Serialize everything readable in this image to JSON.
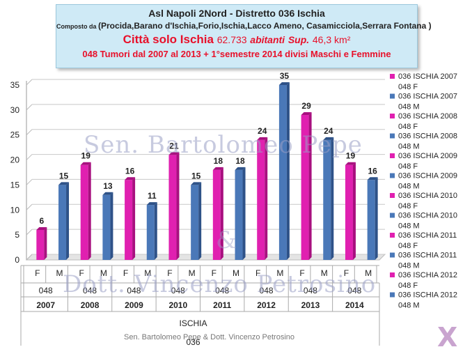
{
  "header": {
    "line1": "Asl Napoli 2Nord - Distretto 036 Ischia",
    "line2_prefix": "Composto da",
    "line2_body": "(Procida,Barano d'Ischia,Forio,Ischia,Lacco Ameno, Casamicciola,Serrara Fontana )",
    "line3_city": "Città solo Ischia",
    "line3_pop": "62.733",
    "line3_abitanti": "abitanti",
    "line3_sup": "Sup.",
    "line3_area": "46,3 km²",
    "line4": "048 Tumori dal 2007 al 2013 + 1°semestre 2014 divisi Maschi e Femmine"
  },
  "watermark": {
    "line1": "Sen. Bartolomeo Pepe",
    "amp": "&",
    "line2": "Dott. Vincenzo Petrosino"
  },
  "credits": "Sen. Bartolomeo Pepe & Dott. Vincenzo Petrosino",
  "logo": "X",
  "chart_data": {
    "type": "bar",
    "ylim": [
      0,
      35
    ],
    "yticks": [
      0,
      5,
      10,
      15,
      20,
      25,
      30,
      35
    ],
    "grid": true,
    "legend_position": "right",
    "colors": {
      "F": "#e020b0",
      "M": "#4a78b8"
    },
    "axis_levels": {
      "tumor_code": "048",
      "place": "ISCHIA",
      "district": "036"
    },
    "categories": [
      {
        "year": "2007",
        "sex": "F"
      },
      {
        "year": "2007",
        "sex": "M"
      },
      {
        "year": "2008",
        "sex": "F"
      },
      {
        "year": "2008",
        "sex": "M"
      },
      {
        "year": "2009",
        "sex": "F"
      },
      {
        "year": "2009",
        "sex": "M"
      },
      {
        "year": "2010",
        "sex": "F"
      },
      {
        "year": "2010",
        "sex": "M"
      },
      {
        "year": "2011",
        "sex": "F"
      },
      {
        "year": "2011",
        "sex": "M"
      },
      {
        "year": "2012",
        "sex": "F"
      },
      {
        "year": "2012",
        "sex": "M"
      },
      {
        "year": "2013",
        "sex": "F"
      },
      {
        "year": "2013",
        "sex": "M"
      },
      {
        "year": "2014",
        "sex": "F"
      },
      {
        "year": "2014",
        "sex": "M"
      }
    ],
    "values": [
      6,
      15,
      19,
      13,
      16,
      11,
      21,
      15,
      18,
      18,
      24,
      35,
      29,
      24,
      19,
      16
    ],
    "legend": [
      {
        "label": "036 ISCHIA 2007 048 F",
        "sex": "F"
      },
      {
        "label": "036 ISCHIA 2007 048 M",
        "sex": "M"
      },
      {
        "label": "036 ISCHIA 2008 048 F",
        "sex": "F"
      },
      {
        "label": "036 ISCHIA 2008 048 M",
        "sex": "M"
      },
      {
        "label": "036 ISCHIA 2009 048 F",
        "sex": "F"
      },
      {
        "label": "036 ISCHIA 2009 048 M",
        "sex": "M"
      },
      {
        "label": "036 ISCHIA 2010 048 F",
        "sex": "F"
      },
      {
        "label": "036 ISCHIA 2010 048 M",
        "sex": "M"
      },
      {
        "label": "036 ISCHIA 2011 048 F",
        "sex": "F"
      },
      {
        "label": "036 ISCHIA 2011 048 M",
        "sex": "M"
      },
      {
        "label": "036 ISCHIA 2012 048 F",
        "sex": "F"
      },
      {
        "label": "036 ISCHIA 2012 048 M",
        "sex": "M"
      }
    ]
  }
}
